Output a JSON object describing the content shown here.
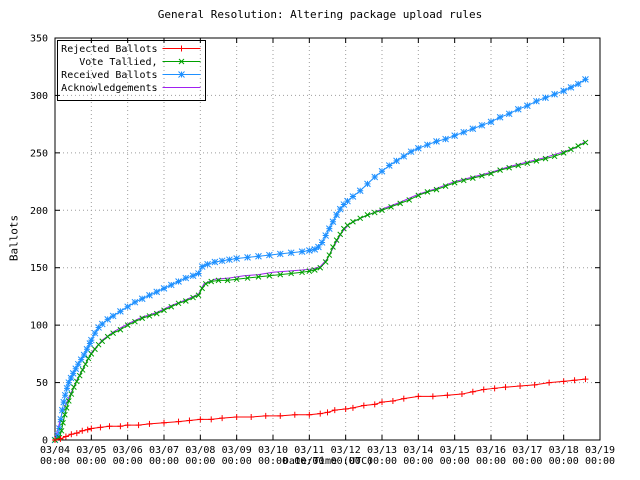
{
  "chart_data": {
    "type": "line",
    "title": "General Resolution: Altering package upload rules",
    "xlabel": "Date/Time (UTC)",
    "ylabel": "Ballots",
    "grid": true,
    "grid_color": "#9e9e9e",
    "axis_color": "#000000",
    "legend_position": "top-left",
    "x_axis": {
      "tick_dates": [
        "03/04",
        "03/05",
        "03/06",
        "03/07",
        "03/08",
        "03/09",
        "03/10",
        "03/11",
        "03/12",
        "03/13",
        "03/14",
        "03/15",
        "03/16",
        "03/17",
        "03/18",
        "03/19"
      ],
      "tick_time": "00:00",
      "range_days": [
        0,
        15
      ]
    },
    "y_axis": {
      "min": 0,
      "max": 350,
      "tick_step": 50,
      "ticks": [
        0,
        50,
        100,
        150,
        200,
        250,
        300,
        350
      ]
    },
    "series": [
      {
        "name": "Rejected Ballots",
        "color": "#ff0000",
        "marker": "plus",
        "points": [
          [
            0,
            0
          ],
          [
            0.15,
            1
          ],
          [
            0.3,
            3
          ],
          [
            0.45,
            5
          ],
          [
            0.6,
            6
          ],
          [
            0.75,
            8
          ],
          [
            0.9,
            9
          ],
          [
            1.0,
            10
          ],
          [
            1.25,
            11
          ],
          [
            1.5,
            12
          ],
          [
            1.8,
            12
          ],
          [
            2.0,
            13
          ],
          [
            2.3,
            13
          ],
          [
            2.6,
            14
          ],
          [
            3.0,
            15
          ],
          [
            3.4,
            16
          ],
          [
            3.7,
            17
          ],
          [
            4.0,
            18
          ],
          [
            4.3,
            18
          ],
          [
            4.6,
            19
          ],
          [
            5.0,
            20
          ],
          [
            5.4,
            20
          ],
          [
            5.8,
            21
          ],
          [
            6.2,
            21
          ],
          [
            6.6,
            22
          ],
          [
            7.0,
            22
          ],
          [
            7.3,
            23
          ],
          [
            7.5,
            24
          ],
          [
            7.7,
            26
          ],
          [
            8.0,
            27
          ],
          [
            8.2,
            28
          ],
          [
            8.5,
            30
          ],
          [
            8.8,
            31
          ],
          [
            9.0,
            33
          ],
          [
            9.3,
            34
          ],
          [
            9.6,
            36
          ],
          [
            10.0,
            38
          ],
          [
            10.4,
            38
          ],
          [
            10.8,
            39
          ],
          [
            11.2,
            40
          ],
          [
            11.5,
            42
          ],
          [
            11.8,
            44
          ],
          [
            12.1,
            45
          ],
          [
            12.4,
            46
          ],
          [
            12.8,
            47
          ],
          [
            13.2,
            48
          ],
          [
            13.6,
            50
          ],
          [
            14.0,
            51
          ],
          [
            14.3,
            52
          ],
          [
            14.6,
            53
          ]
        ]
      },
      {
        "name": "Vote Tallied,",
        "color": "#00a000",
        "marker": "cross",
        "points": [
          [
            0,
            0
          ],
          [
            0.12,
            2
          ],
          [
            0.18,
            8
          ],
          [
            0.22,
            15
          ],
          [
            0.27,
            22
          ],
          [
            0.32,
            28
          ],
          [
            0.38,
            34
          ],
          [
            0.45,
            40
          ],
          [
            0.52,
            46
          ],
          [
            0.6,
            51
          ],
          [
            0.68,
            56
          ],
          [
            0.76,
            61
          ],
          [
            0.84,
            66
          ],
          [
            0.92,
            71
          ],
          [
            1.0,
            75
          ],
          [
            1.1,
            79
          ],
          [
            1.2,
            83
          ],
          [
            1.3,
            86
          ],
          [
            1.45,
            90
          ],
          [
            1.6,
            93
          ],
          [
            1.8,
            96
          ],
          [
            2.0,
            100
          ],
          [
            2.2,
            103
          ],
          [
            2.4,
            106
          ],
          [
            2.6,
            108
          ],
          [
            2.8,
            110
          ],
          [
            3.0,
            113
          ],
          [
            3.2,
            116
          ],
          [
            3.4,
            119
          ],
          [
            3.6,
            121
          ],
          [
            3.8,
            124
          ],
          [
            3.95,
            126
          ],
          [
            4.05,
            132
          ],
          [
            4.15,
            136
          ],
          [
            4.3,
            138
          ],
          [
            4.5,
            139
          ],
          [
            4.75,
            139
          ],
          [
            5.0,
            140
          ],
          [
            5.3,
            141
          ],
          [
            5.6,
            142
          ],
          [
            5.9,
            143
          ],
          [
            6.2,
            144
          ],
          [
            6.5,
            145
          ],
          [
            6.8,
            146
          ],
          [
            7.0,
            147
          ],
          [
            7.15,
            148
          ],
          [
            7.3,
            150
          ],
          [
            7.45,
            155
          ],
          [
            7.55,
            161
          ],
          [
            7.65,
            168
          ],
          [
            7.75,
            174
          ],
          [
            7.85,
            179
          ],
          [
            7.95,
            184
          ],
          [
            8.05,
            187
          ],
          [
            8.2,
            190
          ],
          [
            8.4,
            193
          ],
          [
            8.6,
            196
          ],
          [
            8.8,
            198
          ],
          [
            9.0,
            200
          ],
          [
            9.25,
            203
          ],
          [
            9.5,
            206
          ],
          [
            9.75,
            209
          ],
          [
            10.0,
            213
          ],
          [
            10.25,
            216
          ],
          [
            10.5,
            218
          ],
          [
            10.75,
            221
          ],
          [
            11.0,
            224
          ],
          [
            11.25,
            226
          ],
          [
            11.5,
            228
          ],
          [
            11.75,
            230
          ],
          [
            12.0,
            232
          ],
          [
            12.25,
            235
          ],
          [
            12.5,
            237
          ],
          [
            12.75,
            239
          ],
          [
            13.0,
            241
          ],
          [
            13.25,
            243
          ],
          [
            13.5,
            245
          ],
          [
            13.75,
            247
          ],
          [
            14.0,
            250
          ],
          [
            14.2,
            253
          ],
          [
            14.4,
            256
          ],
          [
            14.6,
            259
          ]
        ]
      },
      {
        "name": "Received Ballots",
        "color": "#1e90ff",
        "marker": "star",
        "points": [
          [
            0,
            0
          ],
          [
            0.08,
            4
          ],
          [
            0.12,
            10
          ],
          [
            0.16,
            18
          ],
          [
            0.2,
            26
          ],
          [
            0.24,
            33
          ],
          [
            0.28,
            39
          ],
          [
            0.33,
            45
          ],
          [
            0.38,
            50
          ],
          [
            0.44,
            54
          ],
          [
            0.5,
            58
          ],
          [
            0.57,
            62
          ],
          [
            0.64,
            66
          ],
          [
            0.72,
            70
          ],
          [
            0.8,
            74
          ],
          [
            0.88,
            79
          ],
          [
            0.96,
            84
          ],
          [
            1.0,
            87
          ],
          [
            1.1,
            93
          ],
          [
            1.2,
            98
          ],
          [
            1.3,
            101
          ],
          [
            1.45,
            105
          ],
          [
            1.6,
            108
          ],
          [
            1.8,
            112
          ],
          [
            2.0,
            116
          ],
          [
            2.2,
            120
          ],
          [
            2.4,
            123
          ],
          [
            2.6,
            126
          ],
          [
            2.8,
            129
          ],
          [
            3.0,
            132
          ],
          [
            3.2,
            135
          ],
          [
            3.4,
            138
          ],
          [
            3.6,
            141
          ],
          [
            3.8,
            143
          ],
          [
            3.95,
            145
          ],
          [
            4.05,
            151
          ],
          [
            4.2,
            153
          ],
          [
            4.4,
            155
          ],
          [
            4.6,
            156
          ],
          [
            4.8,
            157
          ],
          [
            5.0,
            158
          ],
          [
            5.3,
            159
          ],
          [
            5.6,
            160
          ],
          [
            5.9,
            161
          ],
          [
            6.2,
            162
          ],
          [
            6.5,
            163
          ],
          [
            6.8,
            164
          ],
          [
            7.0,
            165
          ],
          [
            7.15,
            166
          ],
          [
            7.25,
            168
          ],
          [
            7.35,
            172
          ],
          [
            7.45,
            178
          ],
          [
            7.55,
            184
          ],
          [
            7.65,
            190
          ],
          [
            7.75,
            196
          ],
          [
            7.85,
            201
          ],
          [
            7.95,
            205
          ],
          [
            8.05,
            208
          ],
          [
            8.2,
            212
          ],
          [
            8.4,
            217
          ],
          [
            8.6,
            223
          ],
          [
            8.8,
            229
          ],
          [
            9.0,
            234
          ],
          [
            9.2,
            239
          ],
          [
            9.4,
            243
          ],
          [
            9.6,
            247
          ],
          [
            9.8,
            251
          ],
          [
            10.0,
            254
          ],
          [
            10.25,
            257
          ],
          [
            10.5,
            260
          ],
          [
            10.75,
            262
          ],
          [
            11.0,
            265
          ],
          [
            11.25,
            268
          ],
          [
            11.5,
            271
          ],
          [
            11.75,
            274
          ],
          [
            12.0,
            277
          ],
          [
            12.25,
            281
          ],
          [
            12.5,
            284
          ],
          [
            12.75,
            288
          ],
          [
            13.0,
            291
          ],
          [
            13.25,
            295
          ],
          [
            13.5,
            298
          ],
          [
            13.75,
            301
          ],
          [
            14.0,
            304
          ],
          [
            14.2,
            307
          ],
          [
            14.4,
            310
          ],
          [
            14.6,
            314
          ]
        ]
      },
      {
        "name": "Acknowledgements",
        "color": "#a020f0",
        "marker": "none",
        "points": [
          [
            0,
            0
          ],
          [
            0.2,
            24
          ],
          [
            0.4,
            38
          ],
          [
            0.6,
            52
          ],
          [
            0.8,
            64
          ],
          [
            1.0,
            76
          ],
          [
            1.3,
            87
          ],
          [
            1.6,
            94
          ],
          [
            2.0,
            101
          ],
          [
            2.4,
            107
          ],
          [
            2.8,
            111
          ],
          [
            3.2,
            117
          ],
          [
            3.6,
            122
          ],
          [
            3.95,
            127
          ],
          [
            4.1,
            136
          ],
          [
            4.4,
            140
          ],
          [
            4.8,
            141
          ],
          [
            5.2,
            143
          ],
          [
            5.6,
            144
          ],
          [
            6.0,
            146
          ],
          [
            6.4,
            147
          ],
          [
            6.8,
            148
          ],
          [
            7.1,
            149
          ],
          [
            7.3,
            151
          ],
          [
            7.5,
            158
          ],
          [
            7.7,
            170
          ],
          [
            7.9,
            181
          ],
          [
            8.1,
            188
          ],
          [
            8.4,
            193
          ],
          [
            8.7,
            197
          ],
          [
            9.0,
            201
          ],
          [
            9.5,
            207
          ],
          [
            10.0,
            214
          ],
          [
            10.5,
            219
          ],
          [
            11.0,
            225
          ],
          [
            11.5,
            229
          ],
          [
            12.0,
            233
          ],
          [
            12.5,
            238
          ],
          [
            13.0,
            242
          ],
          [
            13.5,
            246
          ],
          [
            14.0,
            251
          ],
          [
            14.3,
            254
          ],
          [
            14.6,
            260
          ]
        ]
      }
    ]
  }
}
